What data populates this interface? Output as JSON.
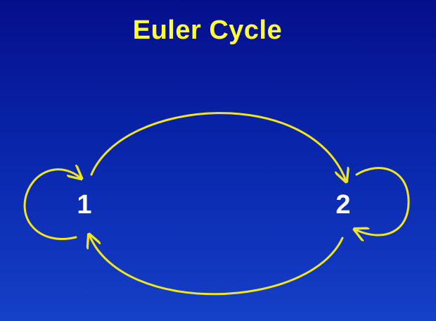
{
  "slide": {
    "title": "Euler Cycle",
    "title_color": "#ffff33",
    "background_top": "#050f8c",
    "background_bottom": "#1540c8"
  },
  "graph": {
    "edge_color": "#f2e51d",
    "nodes": [
      {
        "id": "1",
        "label": "1"
      },
      {
        "id": "2",
        "label": "2"
      }
    ],
    "edges": [
      {
        "from": "1",
        "to": "1",
        "kind": "self-loop"
      },
      {
        "from": "1",
        "to": "2",
        "kind": "upper-arc"
      },
      {
        "from": "2",
        "to": "2",
        "kind": "self-loop"
      },
      {
        "from": "2",
        "to": "1",
        "kind": "lower-arc"
      }
    ]
  }
}
